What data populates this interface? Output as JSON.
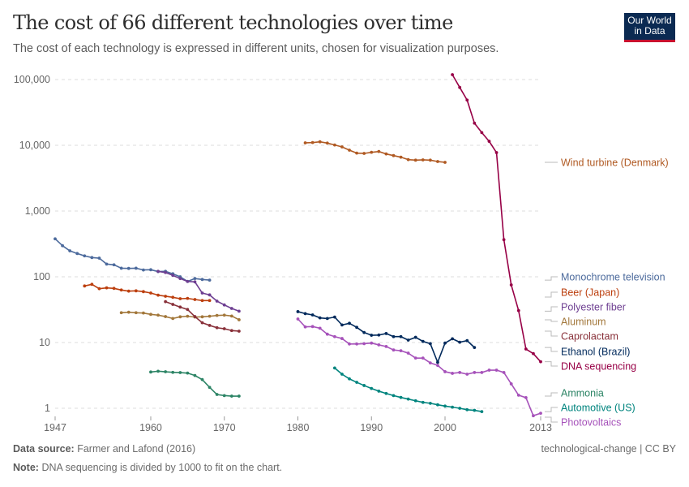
{
  "header": {
    "title": "The cost of 66 different technologies over time",
    "subtitle": "The cost of each technology is expressed in different units, chosen for visualization purposes.",
    "logo_text": "Our World in Data"
  },
  "footer": {
    "source_label": "Data source:",
    "source_text": "Farmer and Lafond (2016)",
    "note_label": "Note:",
    "note_text": "DNA sequencing is divided by 1000 to fit on the chart.",
    "license": "technological-change | CC BY"
  },
  "chart_data": {
    "type": "line",
    "title": "The cost of 66 different technologies over time",
    "y_scale": "log",
    "ylim": [
      1,
      100000
    ],
    "xlim": [
      1947,
      2013
    ],
    "y_ticks": [
      1,
      10,
      100,
      1000,
      10000,
      100000
    ],
    "y_tick_labels": [
      "1",
      "10",
      "100",
      "1,000",
      "10,000",
      "100,000"
    ],
    "x_ticks": [
      1947,
      1960,
      1970,
      1980,
      1990,
      2000,
      2013
    ],
    "x_tick_labels": [
      "1947",
      "1960",
      "1970",
      "1980",
      "1990",
      "2000",
      "2013"
    ],
    "grid": "horizontal dashed",
    "legend": "right, inline labels",
    "series": [
      {
        "name": "Wind turbine (Denmark)",
        "color": "#b05a23",
        "x": [
          1981,
          1982,
          1983,
          1984,
          1985,
          1986,
          1987,
          1988,
          1989,
          1990,
          1991,
          1992,
          1993,
          1994,
          1995,
          1996,
          1997,
          1998,
          1999,
          2000
        ],
        "values": [
          10900,
          11000,
          11300,
          10800,
          10100,
          9440,
          8430,
          7600,
          7530,
          7820,
          8040,
          7380,
          6970,
          6590,
          6050,
          5940,
          6000,
          5940,
          5660,
          5510
        ]
      },
      {
        "name": "Monochrome television",
        "color": "#4c6a9c",
        "x": [
          1947,
          1948,
          1949,
          1950,
          1951,
          1952,
          1953,
          1954,
          1955,
          1956,
          1957,
          1958,
          1959,
          1960,
          1961,
          1962,
          1963,
          1964,
          1965,
          1966,
          1967,
          1968
        ],
        "values": [
          378,
          297,
          248,
          226,
          208,
          196,
          192,
          156,
          152,
          135,
          134,
          135,
          127,
          128,
          120,
          121,
          111,
          100,
          85,
          94,
          91,
          89
        ]
      },
      {
        "name": "Beer (Japan)",
        "color": "#bc3f0e",
        "x": [
          1951,
          1952,
          1953,
          1954,
          1955,
          1956,
          1957,
          1958,
          1959,
          1960,
          1961,
          1962,
          1963,
          1964,
          1965,
          1966,
          1967,
          1968
        ],
        "values": [
          72.5,
          76.7,
          65.9,
          67.8,
          66.6,
          62.9,
          60.5,
          61.1,
          59.4,
          56.6,
          52.5,
          50.6,
          48.7,
          46.4,
          46.9,
          45.1,
          43.5,
          43.5
        ]
      },
      {
        "name": "Polyester fiber",
        "color": "#6d3e91",
        "x": [
          1961,
          1962,
          1963,
          1964,
          1965,
          1966,
          1967,
          1968,
          1969,
          1970,
          1971,
          1972
        ],
        "values": [
          121,
          116,
          105,
          94,
          85,
          83.6,
          56.6,
          53,
          42.6,
          37.3,
          33,
          30
        ]
      },
      {
        "name": "Aluminum",
        "color": "#a2773a",
        "x": [
          1956,
          1957,
          1958,
          1959,
          1960,
          1961,
          1962,
          1963,
          1964,
          1965,
          1966,
          1967,
          1968,
          1969,
          1970,
          1971,
          1972
        ],
        "values": [
          28.4,
          28.9,
          28.4,
          28.1,
          26.8,
          26.1,
          24.8,
          23.2,
          24.6,
          25.1,
          24.4,
          24.6,
          25.1,
          25.8,
          26.1,
          25.3,
          22.2
        ]
      },
      {
        "name": "Caprolactam",
        "color": "#883039",
        "x": [
          1962,
          1963,
          1964,
          1965,
          1966,
          1967,
          1968,
          1969,
          1970,
          1971,
          1972
        ],
        "values": [
          41.8,
          38,
          34.6,
          31.8,
          24.8,
          20,
          18.2,
          16.8,
          16.2,
          15.2,
          14.9
        ]
      },
      {
        "name": "Ethanol (Brazil)",
        "color": "#00295b",
        "x": [
          1980,
          1981,
          1982,
          1983,
          1984,
          1985,
          1986,
          1987,
          1988,
          1989,
          1990,
          1991,
          1992,
          1993,
          1994,
          1995,
          1996,
          1997,
          1998,
          1999,
          2000,
          2001,
          2002,
          2003,
          2004
        ],
        "values": [
          29.5,
          27.5,
          26.3,
          23.7,
          23.2,
          24.4,
          18.5,
          19.6,
          17,
          14.2,
          12.9,
          13,
          13.7,
          12.3,
          12.3,
          10.9,
          12,
          10.4,
          9.6,
          5.0,
          9.8,
          11.4,
          10.1,
          10.7,
          8.4
        ]
      },
      {
        "name": "DNA sequencing",
        "color": "#970046",
        "x": [
          2001,
          2002,
          2003,
          2004,
          2005,
          2006,
          2007,
          2008,
          2009,
          2010,
          2011,
          2012,
          2013
        ],
        "values": [
          118600,
          75900,
          48800,
          21700,
          15600,
          11500,
          7740,
          367,
          75.3,
          30.6,
          7.96,
          6.78,
          5.1
        ]
      },
      {
        "name": "Ammonia",
        "color": "#2c8465",
        "x": [
          1960,
          1961,
          1962,
          1963,
          1964,
          1965,
          1966,
          1967,
          1968,
          1969,
          1970,
          1971,
          1972
        ],
        "values": [
          3.56,
          3.66,
          3.59,
          3.52,
          3.49,
          3.43,
          3.15,
          2.73,
          2.08,
          1.62,
          1.56,
          1.53,
          1.53
        ]
      },
      {
        "name": "Automotive (US)",
        "color": "#00847e",
        "x": [
          1985,
          1986,
          1987,
          1988,
          1989,
          1990,
          1991,
          1992,
          1993,
          1994,
          1995,
          1996,
          1997,
          1998,
          1999,
          2000,
          2001,
          2002,
          2003,
          2004,
          2005
        ],
        "values": [
          4.1,
          3.3,
          2.8,
          2.48,
          2.22,
          2.0,
          1.82,
          1.68,
          1.56,
          1.46,
          1.38,
          1.3,
          1.23,
          1.19,
          1.13,
          1.08,
          1.04,
          1.0,
          0.95,
          0.93,
          0.89
        ]
      },
      {
        "name": "Photovoltaics",
        "color": "#a652ba",
        "x": [
          1980,
          1981,
          1982,
          1983,
          1984,
          1985,
          1986,
          1987,
          1988,
          1989,
          1990,
          1991,
          1992,
          1993,
          1994,
          1995,
          1996,
          1997,
          1998,
          1999,
          2000,
          2001,
          2002,
          2003,
          2004,
          2005,
          2006,
          2007,
          2008,
          2009,
          2010,
          2011,
          2012,
          2013
        ],
        "values": [
          22.8,
          17.3,
          17.5,
          16.5,
          13.4,
          12.3,
          11.5,
          9.5,
          9.5,
          9.6,
          9.8,
          9.2,
          8.7,
          7.7,
          7.5,
          6.9,
          5.8,
          5.8,
          4.9,
          4.5,
          3.6,
          3.4,
          3.5,
          3.3,
          3.5,
          3.5,
          3.8,
          3.8,
          3.5,
          2.35,
          1.58,
          1.45,
          0.77,
          0.84
        ]
      }
    ]
  }
}
